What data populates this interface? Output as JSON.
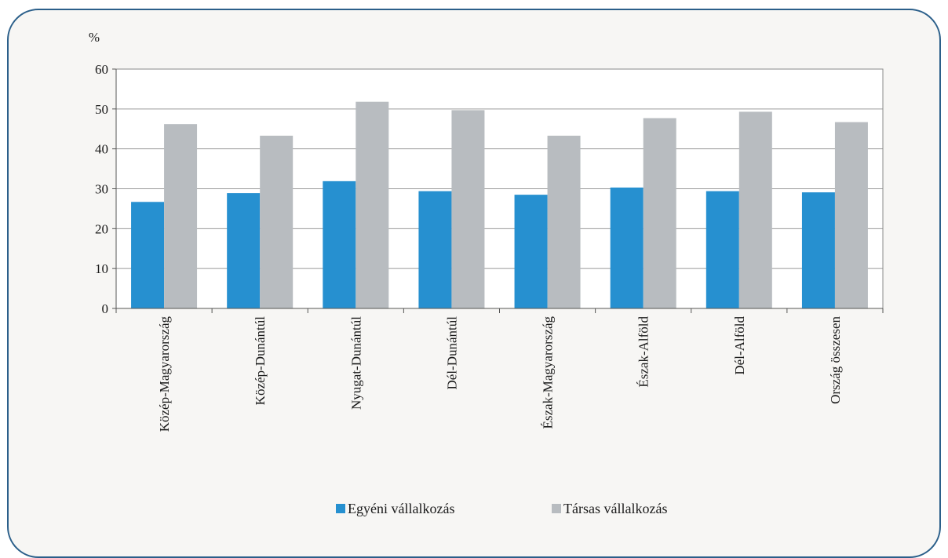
{
  "chart_data": {
    "type": "bar",
    "ylabel": "%",
    "ylim": [
      0,
      60
    ],
    "yticks": [
      0,
      10,
      20,
      30,
      40,
      50,
      60
    ],
    "grid": true,
    "legend_position": "bottom-center",
    "categories": [
      "Közép-Magyarország",
      "Közép-Dunántúl",
      "Nyugat-Dunántúl",
      "Dél-Dunántúl",
      "Észak-Magyarország",
      "Észak-Alföld",
      "Dél-Alföld",
      "Ország összesen"
    ],
    "series": [
      {
        "name": "Egyéni vállalkozás",
        "color": "#2690d0",
        "values": [
          26.7,
          28.9,
          31.9,
          29.4,
          28.5,
          30.3,
          29.4,
          29.1
        ]
      },
      {
        "name": "Társas vállalkozás",
        "color": "#b8bcc0",
        "values": [
          46.2,
          43.3,
          51.8,
          49.7,
          43.3,
          47.7,
          49.3,
          46.7
        ]
      }
    ]
  }
}
